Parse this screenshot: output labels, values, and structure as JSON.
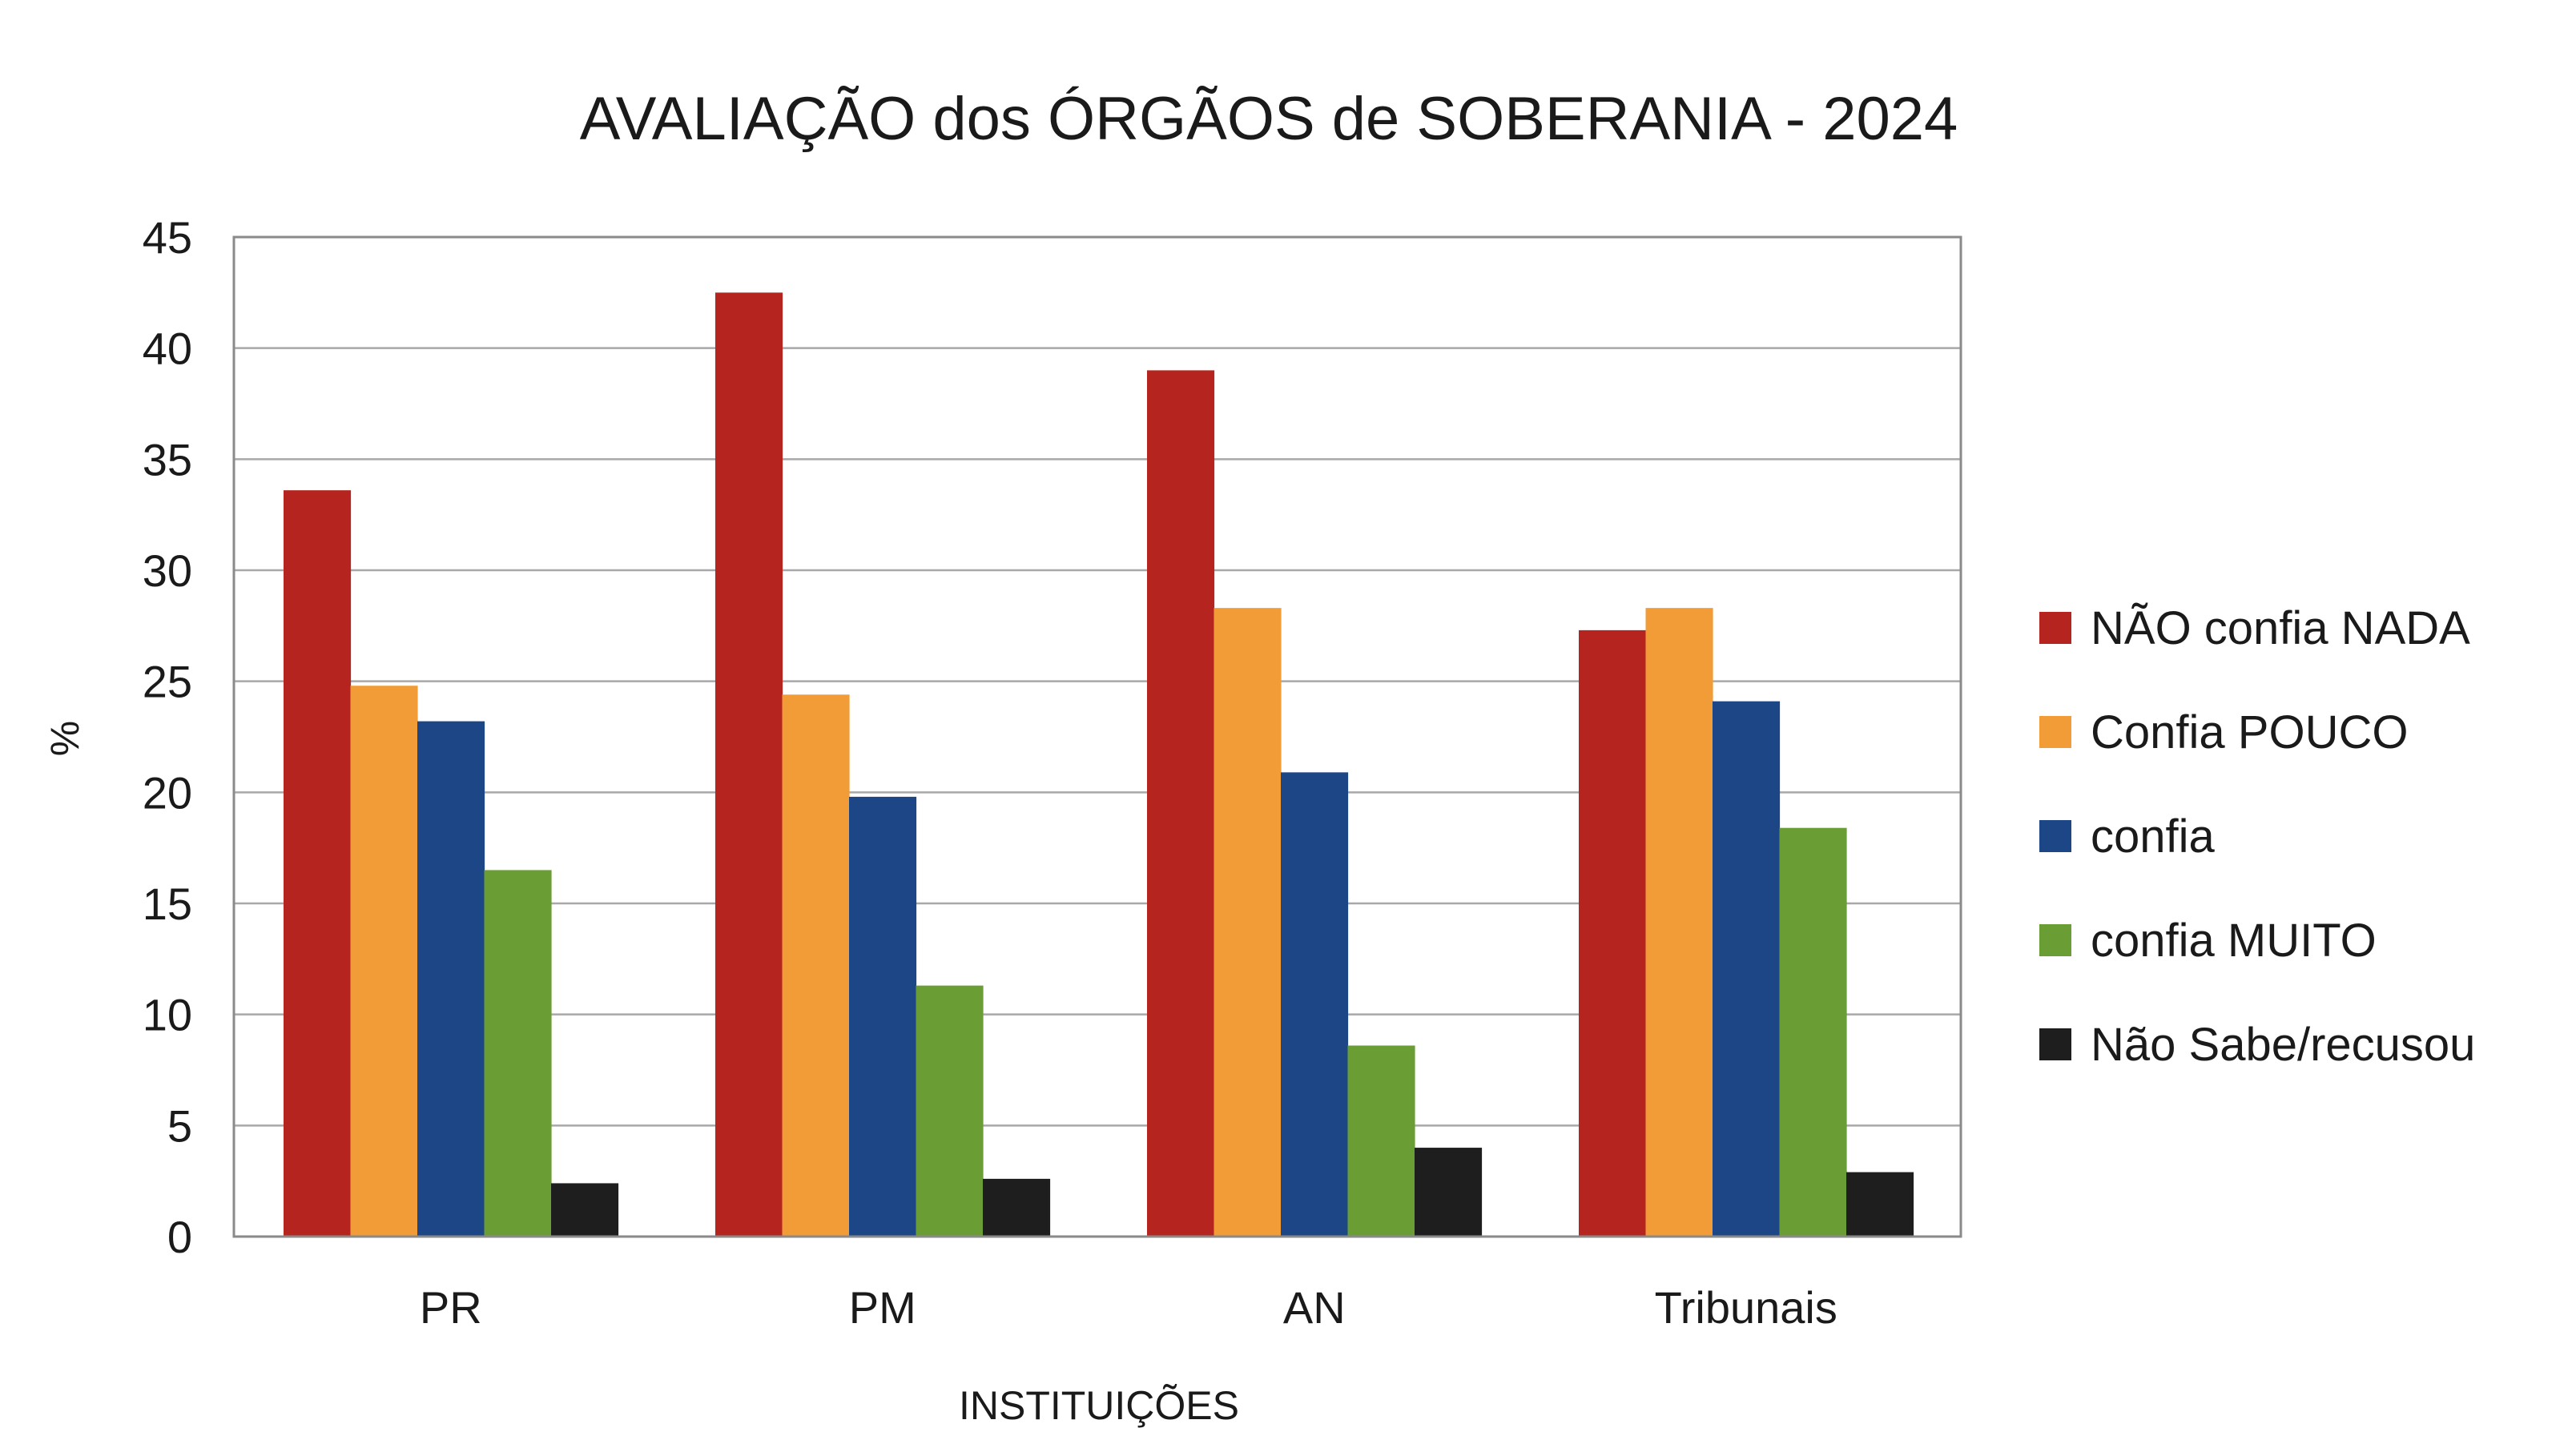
{
  "chart_data": {
    "type": "bar",
    "title": "AVALIAÇÃO dos ÓRGÃOS de SOBERANIA - 2024",
    "xlabel": "INSTITUIÇÕES",
    "ylabel": "%",
    "ylim": [
      0,
      45
    ],
    "yticks": [
      0,
      5,
      10,
      15,
      20,
      25,
      30,
      35,
      40,
      45
    ],
    "grid": true,
    "legend_position": "right",
    "categories": [
      "PR",
      "PM",
      "AN",
      "Tribunais"
    ],
    "series": [
      {
        "name": "NÃO confia NADA",
        "color": "#b5241f",
        "values": [
          33.6,
          42.5,
          39.0,
          27.3
        ]
      },
      {
        "name": "Confia POUCO",
        "color": "#f29c38",
        "values": [
          24.8,
          24.4,
          28.3,
          28.3
        ]
      },
      {
        "name": "confia",
        "color": "#1c4685",
        "values": [
          23.2,
          19.8,
          20.9,
          24.1
        ]
      },
      {
        "name": "confia MUITO",
        "color": "#6a9e35",
        "values": [
          16.5,
          11.3,
          8.6,
          18.4
        ]
      },
      {
        "name": "Não Sabe/recusou",
        "color": "#1e1e1e",
        "values": [
          2.4,
          2.6,
          4.0,
          2.9
        ]
      }
    ]
  }
}
